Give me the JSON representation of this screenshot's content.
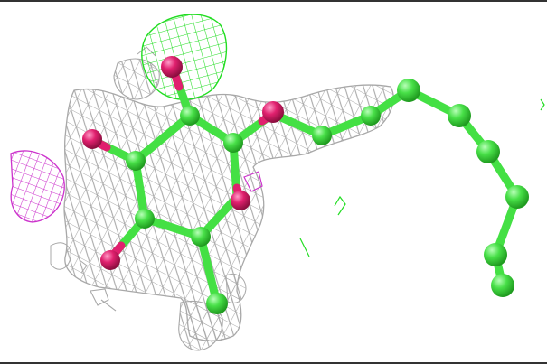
{
  "scene": {
    "description_label": "",
    "colors": {
      "background": "#ffffff",
      "density_mesh_main": "#a8a8a8",
      "density_mesh_positive": "#33e233",
      "density_mesh_negative": "#cc33cc",
      "carbon": "#44e044",
      "oxygen": "#e0206e",
      "frame": "#333333"
    },
    "objects": [
      "electron-density-mesh",
      "positive-difference-density-mesh",
      "negative-difference-density-mesh",
      "ligand-ring",
      "ligand-alkyl-chain"
    ]
  }
}
